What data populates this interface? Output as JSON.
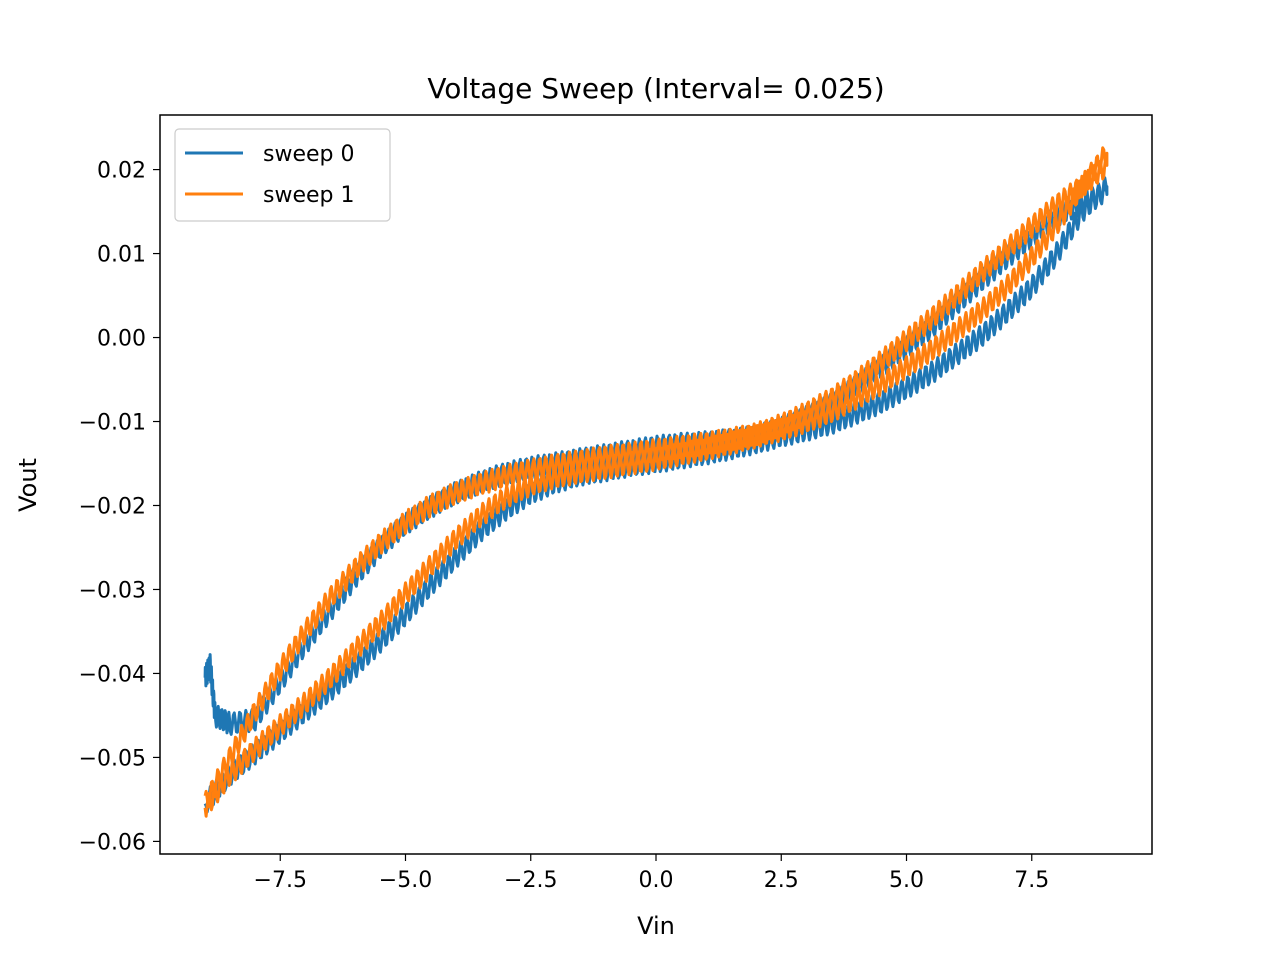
{
  "chart_data": {
    "type": "line",
    "title": "Voltage Sweep (Interval= 0.025)",
    "xlabel": "Vin",
    "ylabel": "Vout",
    "xlim": [
      -9.9,
      9.9
    ],
    "ylim": [
      -0.0615,
      0.0265
    ],
    "xticks": [
      -7.5,
      -5.0,
      -2.5,
      0.0,
      2.5,
      5.0,
      7.5
    ],
    "xtick_labels": [
      "−7.5",
      "−5.0",
      "−2.5",
      "0.0",
      "2.5",
      "5.0",
      "7.5"
    ],
    "yticks": [
      0.02,
      0.01,
      0.0,
      -0.01,
      -0.02,
      -0.03,
      -0.04,
      -0.05,
      -0.06
    ],
    "ytick_labels": [
      "0.02",
      "0.01",
      "0.00",
      "−0.01",
      "−0.02",
      "−0.03",
      "−0.04",
      "−0.05",
      "−0.06"
    ],
    "grid": false,
    "legend_position": "top-left",
    "series": [
      {
        "name": "sweep 0",
        "color": "#1f77b4",
        "note_shape": "hysteresis loop with small oscillation",
        "x": [
          -9.0,
          -8.9,
          -8.8,
          -8.5,
          -8.0,
          -7.5,
          -7.0,
          -6.5,
          -6.0,
          -5.5,
          -5.0,
          -4.5,
          -4.0,
          -3.5,
          -3.0,
          -2.5,
          -2.0,
          -1.5,
          -1.0,
          -0.5,
          0.0,
          0.5,
          1.0,
          1.5,
          2.0,
          2.5,
          3.0,
          3.5,
          4.0,
          4.5,
          5.0,
          5.5,
          6.0,
          6.5,
          7.0,
          7.5,
          8.0,
          8.5,
          9.0,
          9.0,
          8.5,
          8.0,
          7.5,
          7.0,
          6.5,
          6.0,
          5.5,
          5.0,
          4.5,
          4.0,
          3.5,
          3.0,
          2.5,
          2.0,
          1.5,
          1.0,
          0.5,
          0.0,
          -0.5,
          -1.0,
          -1.5,
          -2.0,
          -2.5,
          -3.0,
          -3.5,
          -4.0,
          -4.5,
          -5.0,
          -5.5,
          -6.0,
          -6.5,
          -7.0,
          -7.5,
          -8.0,
          -8.5,
          -9.0
        ],
        "y": [
          -0.0405,
          -0.039,
          -0.045,
          -0.046,
          -0.0455,
          -0.041,
          -0.0365,
          -0.0325,
          -0.0285,
          -0.025,
          -0.0222,
          -0.0202,
          -0.0185,
          -0.0172,
          -0.0162,
          -0.0155,
          -0.015,
          -0.0145,
          -0.014,
          -0.0135,
          -0.013,
          -0.0127,
          -0.0125,
          -0.0122,
          -0.0118,
          -0.0108,
          -0.0095,
          -0.008,
          -0.0058,
          -0.0035,
          -0.0012,
          0.0012,
          0.004,
          0.0068,
          0.0095,
          0.012,
          0.0145,
          0.016,
          0.0175,
          0.018,
          0.015,
          0.01,
          0.006,
          0.003,
          0.0002,
          -0.002,
          -0.0042,
          -0.006,
          -0.0077,
          -0.009,
          -0.0102,
          -0.011,
          -0.0117,
          -0.0125,
          -0.0132,
          -0.0138,
          -0.0143,
          -0.0148,
          -0.0152,
          -0.0158,
          -0.0163,
          -0.0172,
          -0.0185,
          -0.0205,
          -0.023,
          -0.0262,
          -0.0295,
          -0.033,
          -0.0362,
          -0.0392,
          -0.042,
          -0.0445,
          -0.047,
          -0.0495,
          -0.052,
          -0.0555
        ]
      },
      {
        "name": "sweep 1",
        "color": "#ff7f0e",
        "note_shape": "hysteresis loop with small oscillation",
        "x": [
          -9.0,
          -8.5,
          -8.0,
          -7.5,
          -7.0,
          -6.5,
          -6.0,
          -5.5,
          -5.0,
          -4.5,
          -4.0,
          -3.5,
          -3.0,
          -2.5,
          -2.0,
          -1.5,
          -1.0,
          -0.5,
          0.0,
          0.5,
          1.0,
          1.5,
          2.0,
          2.5,
          3.0,
          3.5,
          4.0,
          4.5,
          5.0,
          5.5,
          6.0,
          6.5,
          7.0,
          7.5,
          8.0,
          8.5,
          9.0,
          9.0,
          8.5,
          8.0,
          7.5,
          7.0,
          6.5,
          6.0,
          5.5,
          5.0,
          4.5,
          4.0,
          3.5,
          3.0,
          2.5,
          2.0,
          1.5,
          1.0,
          0.5,
          0.0,
          -0.5,
          -1.0,
          -1.5,
          -2.0,
          -2.5,
          -3.0,
          -3.5,
          -4.0,
          -4.5,
          -5.0,
          -5.5,
          -6.0,
          -6.5,
          -7.0,
          -7.5,
          -8.0,
          -8.5,
          -9.0
        ],
        "y": [
          -0.0555,
          -0.05,
          -0.0445,
          -0.0395,
          -0.035,
          -0.031,
          -0.0275,
          -0.0245,
          -0.022,
          -0.02,
          -0.0185,
          -0.0174,
          -0.0165,
          -0.0158,
          -0.0152,
          -0.0147,
          -0.0142,
          -0.0138,
          -0.0134,
          -0.013,
          -0.0126,
          -0.0121,
          -0.0115,
          -0.0104,
          -0.009,
          -0.0073,
          -0.0052,
          -0.0028,
          -0.0003,
          0.0023,
          0.005,
          0.0078,
          0.0105,
          0.0132,
          0.0158,
          0.018,
          0.0205,
          0.022,
          0.018,
          0.0135,
          0.0095,
          0.006,
          0.0032,
          0.0008,
          -0.0015,
          -0.0035,
          -0.0055,
          -0.0072,
          -0.0088,
          -0.01,
          -0.011,
          -0.0118,
          -0.0126,
          -0.0133,
          -0.0139,
          -0.0145,
          -0.015,
          -0.0155,
          -0.016,
          -0.0166,
          -0.0175,
          -0.019,
          -0.0212,
          -0.024,
          -0.0272,
          -0.0305,
          -0.034,
          -0.0372,
          -0.0405,
          -0.0435,
          -0.0462,
          -0.049,
          -0.052,
          -0.056
        ]
      }
    ]
  }
}
